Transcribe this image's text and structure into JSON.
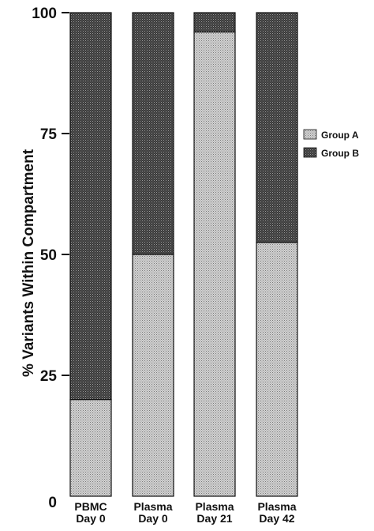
{
  "chart_data": {
    "type": "bar",
    "stacked": true,
    "percent": true,
    "title": "",
    "xlabel": "",
    "ylabel": "% Variants Within Compartment",
    "ylim": [
      0,
      100
    ],
    "yticks": [
      "0",
      "25",
      "50",
      "75",
      "100"
    ],
    "categories": [
      [
        "PBMC",
        "Day 0"
      ],
      [
        "Plasma",
        "Day 0"
      ],
      [
        "Plasma",
        "Day 21"
      ],
      [
        "Plasma",
        "Day 42"
      ]
    ],
    "series": [
      {
        "name": "Group A",
        "values": [
          20,
          50,
          96,
          52.5
        ],
        "color": "#c4c4c4"
      },
      {
        "name": "Group B",
        "values": [
          80,
          50,
          4,
          47.5
        ],
        "color": "#4a4a4a"
      }
    ],
    "legend": {
      "position": "right",
      "entries": [
        "Group A",
        "Group B"
      ]
    },
    "grid": false
  }
}
